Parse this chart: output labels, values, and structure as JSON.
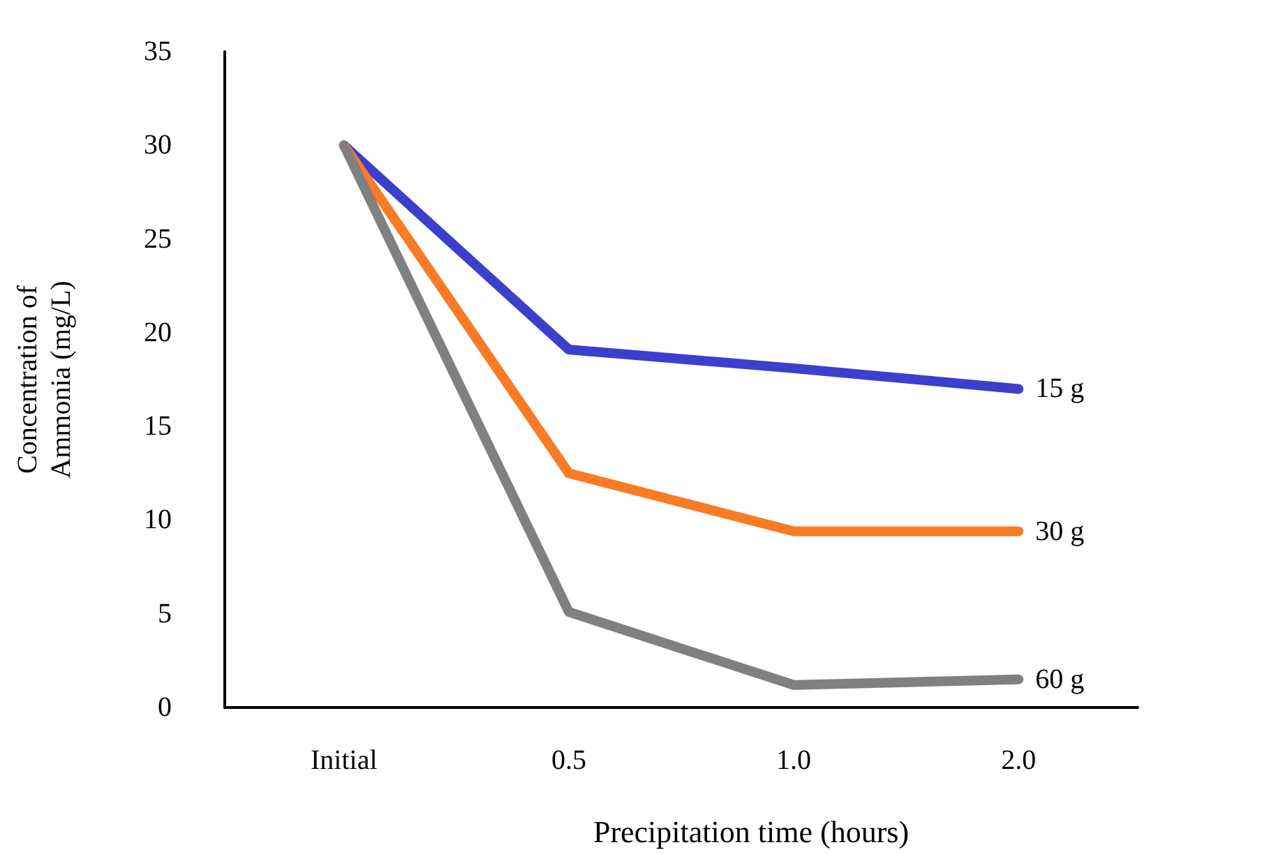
{
  "chart_data": {
    "type": "line",
    "xlabel": "Precipitation time (hours)",
    "ylabel": "Concentration of\nAmmonia (mg/L)",
    "categories": [
      "Initial",
      "0.5",
      "1.0",
      "2.0"
    ],
    "series": [
      {
        "name": "15 g",
        "color": "#3c3fcc",
        "values": [
          30,
          19.1,
          18.1,
          17.0
        ]
      },
      {
        "name": "30 g",
        "color": "#f97b26",
        "values": [
          30,
          12.5,
          9.4,
          9.4
        ]
      },
      {
        "name": "60 g",
        "color": "#808080",
        "values": [
          30,
          5.1,
          1.2,
          1.5
        ]
      }
    ],
    "ylim": [
      0,
      35
    ],
    "yticks": [
      0,
      5,
      10,
      15,
      20,
      25,
      30,
      35
    ],
    "grid": false,
    "legend": false,
    "marker": "none",
    "line_style": "solid"
  }
}
